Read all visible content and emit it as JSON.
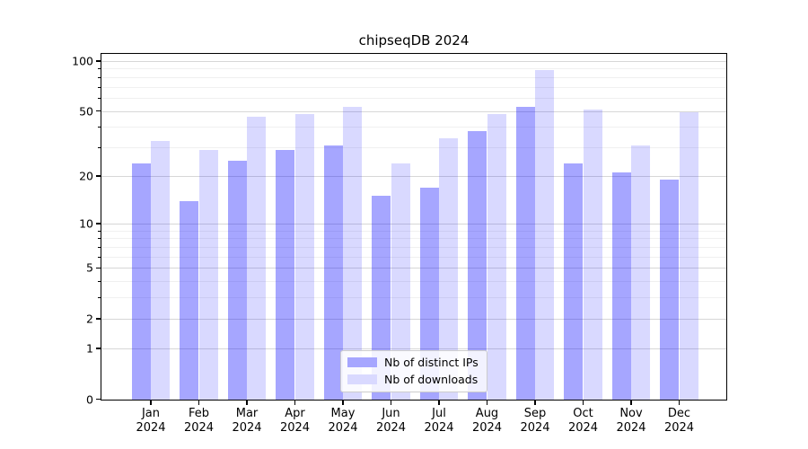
{
  "title": "chipseqDB 2024",
  "chart_data": {
    "type": "bar",
    "title": "chipseqDB 2024",
    "xlabel": "",
    "ylabel": "",
    "yscale": "log1p",
    "ylim": [
      0,
      110
    ],
    "grid": "horizontal, major and minor",
    "yticks_major": [
      0,
      1,
      2,
      5,
      10,
      20,
      50,
      100
    ],
    "yticks_minor": [
      3,
      4,
      6,
      7,
      8,
      9,
      30,
      40,
      60,
      70,
      80,
      90
    ],
    "x_month_labels": [
      "Jan",
      "Feb",
      "Mar",
      "Apr",
      "May",
      "Jun",
      "Jul",
      "Aug",
      "Sep",
      "Oct",
      "Nov",
      "Dec"
    ],
    "x_year_label": "2024",
    "categories": [
      "Jan 2024",
      "Feb 2024",
      "Mar 2024",
      "Apr 2024",
      "May 2024",
      "Jun 2024",
      "Jul 2024",
      "Aug 2024",
      "Sep 2024",
      "Oct 2024",
      "Nov 2024",
      "Dec 2024"
    ],
    "series": [
      {
        "name": "Nb of distinct IPs",
        "values": [
          24,
          14,
          25,
          29,
          31,
          15,
          17,
          38,
          53,
          24,
          21,
          19
        ],
        "color": "rgba(0,0,255,0.35)",
        "color_on_white_hex": "#a6a6ff"
      },
      {
        "name": "Nb of downloads",
        "values": [
          33,
          29,
          46,
          48,
          53,
          24,
          34,
          48,
          88,
          51,
          31,
          49
        ],
        "color": "rgba(0,0,255,0.15)",
        "color_on_white_hex": "#d9d9ff"
      }
    ],
    "legend_position": "lower center"
  }
}
